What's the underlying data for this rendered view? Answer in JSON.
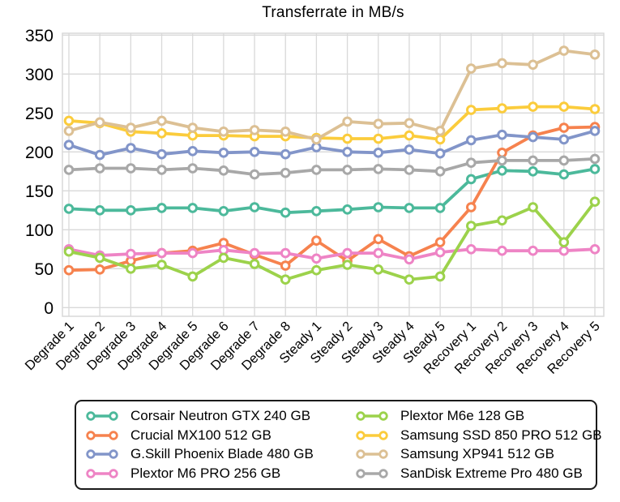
{
  "title": "Transferrate in MB/s",
  "colors": {
    "background": "#ffffff",
    "grid": "#d9d9d9",
    "text": "#000000",
    "legend_border": "#1a1a1a"
  },
  "chart_data": {
    "type": "line",
    "title": "Transferrate in MB/s",
    "xlabel": "",
    "ylabel": "",
    "ylim": [
      0,
      350
    ],
    "yticks": [
      0,
      50,
      100,
      150,
      200,
      250,
      300,
      350
    ],
    "grid": true,
    "marker": "open-circle",
    "legend_position": "bottom",
    "legend_columns": 2,
    "categories": [
      "Degrade 1",
      "Degrade 2",
      "Degrade 3",
      "Degrade 4",
      "Degrade 5",
      "Degrade 6",
      "Degrade 7",
      "Degrade 8",
      "Steady 1",
      "Steady 2",
      "Steady 3",
      "Steady 4",
      "Steady 5",
      "Recovery 1",
      "Recovery 2",
      "Recovery 3",
      "Recovery 4",
      "Recovery 5"
    ],
    "series": [
      {
        "name": "Corsair Neutron GTX 240 GB",
        "color": "#4cb99b",
        "values": [
          127,
          125,
          125,
          128,
          128,
          124,
          129,
          122,
          124,
          126,
          129,
          128,
          128,
          165,
          176,
          175,
          171,
          178
        ]
      },
      {
        "name": "Crucial MX100 512 GB",
        "color": "#f6824e",
        "values": [
          48,
          49,
          60,
          70,
          73,
          83,
          68,
          54,
          86,
          60,
          88,
          66,
          84,
          129,
          199,
          221,
          231,
          232
        ]
      },
      {
        "name": "G.Skill Phoenix Blade 480 GB",
        "color": "#8295c9",
        "values": [
          209,
          196,
          205,
          197,
          201,
          199,
          200,
          197,
          206,
          200,
          199,
          203,
          198,
          215,
          222,
          219,
          216,
          227
        ]
      },
      {
        "name": "Plextor M6 PRO 256 GB",
        "color": "#ee84c5",
        "values": [
          75,
          67,
          69,
          70,
          70,
          74,
          70,
          70,
          63,
          70,
          70,
          62,
          71,
          75,
          73,
          73,
          73,
          75
        ]
      },
      {
        "name": "Plextor M6e 128 GB",
        "color": "#9cd24b",
        "values": [
          72,
          64,
          50,
          55,
          40,
          64,
          56,
          36,
          48,
          55,
          49,
          36,
          40,
          105,
          112,
          129,
          84,
          136
        ]
      },
      {
        "name": "Samsung SSD 850 PRO 512 GB",
        "color": "#fbcc3c",
        "values": [
          240,
          237,
          226,
          224,
          221,
          221,
          220,
          220,
          218,
          217,
          217,
          221,
          216,
          254,
          256,
          258,
          258,
          255
        ]
      },
      {
        "name": "Samsung XP941 512 GB",
        "color": "#dcc094",
        "values": [
          227,
          238,
          231,
          240,
          231,
          226,
          228,
          226,
          216,
          239,
          236,
          237,
          227,
          307,
          314,
          312,
          330,
          325
        ]
      },
      {
        "name": "SanDisk Extreme Pro 480 GB",
        "color": "#a8a8a8",
        "values": [
          177,
          179,
          179,
          177,
          179,
          176,
          171,
          173,
          177,
          177,
          178,
          177,
          175,
          186,
          189,
          189,
          189,
          191
        ]
      }
    ]
  }
}
